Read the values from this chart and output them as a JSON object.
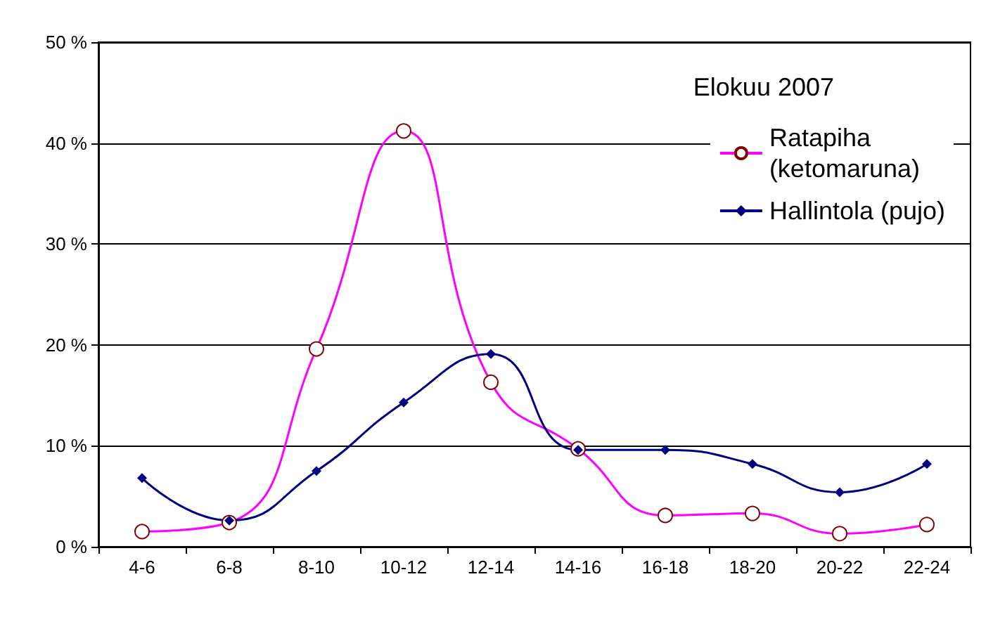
{
  "chart_data": {
    "type": "line",
    "legend_title": "Elokuu 2007",
    "categories": [
      "4-6",
      "6-8",
      "8-10",
      "10-12",
      "12-14",
      "14-16",
      "16-18",
      "18-20",
      "20-22",
      "22-24"
    ],
    "series": [
      {
        "name": "Ratapiha (ketomaruna)",
        "color": "#ff00ff",
        "marker": "circle",
        "values": [
          1.5,
          2.4,
          19.6,
          41.2,
          16.3,
          9.7,
          3.1,
          3.3,
          1.3,
          2.2
        ]
      },
      {
        "name": "Hallintola (pujo)",
        "color": "#000080",
        "marker": "diamond",
        "values": [
          6.8,
          2.6,
          7.5,
          14.3,
          19.1,
          9.6,
          9.6,
          8.2,
          5.4,
          8.2
        ]
      }
    ],
    "ylim": [
      0,
      50
    ],
    "yticks": [
      {
        "value": 0,
        "label": "0 %"
      },
      {
        "value": 10,
        "label": "10 %"
      },
      {
        "value": 20,
        "label": "20 %"
      },
      {
        "value": 30,
        "label": "30 %"
      },
      {
        "value": 40,
        "label": "40 %"
      },
      {
        "value": 50,
        "label": "50 %"
      }
    ],
    "grid": "y",
    "legend": "top right",
    "line_style": "solid"
  }
}
